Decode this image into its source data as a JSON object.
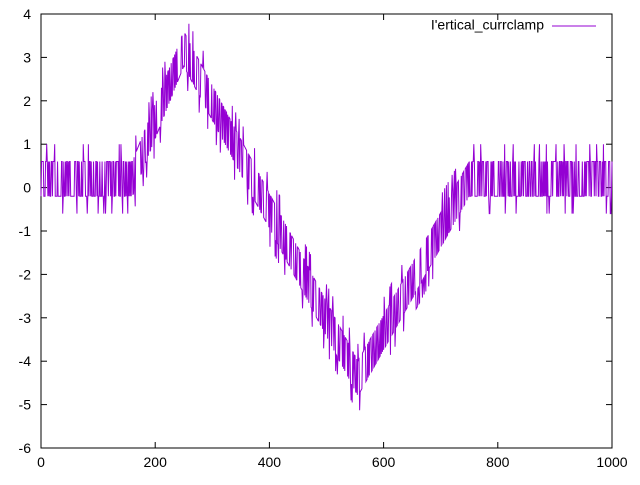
{
  "chart_data": {
    "type": "line",
    "title": "",
    "xlabel": "",
    "ylabel": "",
    "xlim": [
      0,
      1000
    ],
    "ylim": [
      -6,
      4
    ],
    "x_ticks": [
      0,
      200,
      400,
      600,
      800,
      1000
    ],
    "y_ticks": [
      -6,
      -5,
      -4,
      -3,
      -2,
      -1,
      0,
      1,
      2,
      3,
      4
    ],
    "grid": false,
    "legend": {
      "position": "top-right"
    },
    "series": [
      {
        "name": "I'ertical_currclamp",
        "color": "#9400d3",
        "baseline_segments": [
          {
            "x": 0,
            "y": 0.2
          },
          {
            "x": 160,
            "y": 0.2
          },
          {
            "x": 250,
            "y": 3.2
          },
          {
            "x": 555,
            "y": -4.4
          },
          {
            "x": 750,
            "y": 0.2
          },
          {
            "x": 1000,
            "y": 0.2
          }
        ],
        "noise_levels": [
          -0.4,
          0.4
        ],
        "noise_extremes": [
          -0.8,
          0.8
        ],
        "sample_count": 1000
      }
    ]
  }
}
